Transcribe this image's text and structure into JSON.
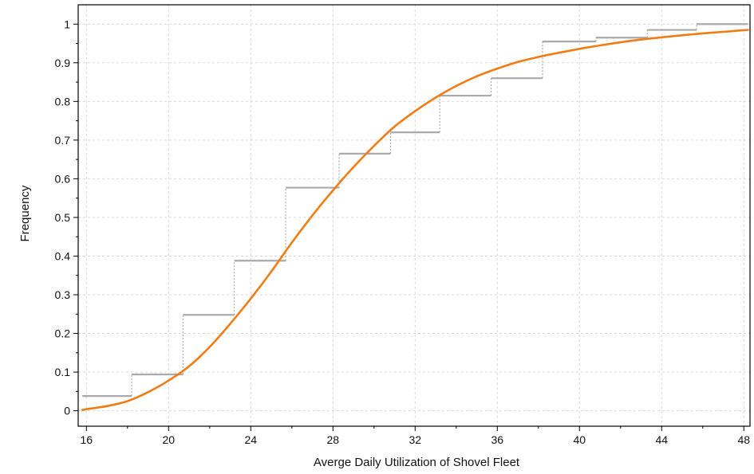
{
  "chart_data": {
    "type": "line",
    "title": "",
    "xlabel": "Averge Daily Utilization of Shovel Fleet",
    "ylabel": "Frequency",
    "xlim": [
      15.6,
      48.3
    ],
    "ylim": [
      -0.04,
      1.05
    ],
    "x_ticks": [
      16,
      20,
      24,
      28,
      32,
      36,
      40,
      44,
      48
    ],
    "y_ticks": [
      0,
      0.1,
      0.2,
      0.3,
      0.4,
      0.5,
      0.6,
      0.7,
      0.8,
      0.9,
      1
    ],
    "grid": true,
    "legend": "none",
    "series": [
      {
        "kind": "empirical-step",
        "color": "#aaaaaa",
        "steps": [
          {
            "x_start": 15.8,
            "x_end": 18.2,
            "y": 0.038
          },
          {
            "x_start": 18.2,
            "x_end": 20.7,
            "y": 0.094
          },
          {
            "x_start": 20.7,
            "x_end": 23.2,
            "y": 0.248
          },
          {
            "x_start": 23.2,
            "x_end": 25.7,
            "y": 0.388
          },
          {
            "x_start": 25.7,
            "x_end": 28.3,
            "y": 0.577
          },
          {
            "x_start": 28.3,
            "x_end": 30.8,
            "y": 0.665
          },
          {
            "x_start": 30.8,
            "x_end": 33.2,
            "y": 0.72
          },
          {
            "x_start": 33.2,
            "x_end": 35.7,
            "y": 0.815
          },
          {
            "x_start": 35.7,
            "x_end": 38.2,
            "y": 0.86
          },
          {
            "x_start": 38.2,
            "x_end": 40.8,
            "y": 0.955
          },
          {
            "x_start": 40.8,
            "x_end": 43.3,
            "y": 0.965
          },
          {
            "x_start": 43.3,
            "x_end": 45.7,
            "y": 0.985
          },
          {
            "x_start": 45.7,
            "x_end": 48.2,
            "y": 1.0
          }
        ]
      },
      {
        "kind": "fitted-cdf",
        "color": "#f07d14",
        "x": [
          15.8,
          16,
          17,
          18,
          19,
          20,
          21,
          22,
          23,
          24,
          25,
          26,
          27,
          28,
          29,
          30,
          31,
          32,
          33,
          34,
          35,
          36,
          37,
          38,
          39,
          40,
          41,
          42,
          43,
          44,
          45,
          46,
          47,
          48.2
        ],
        "y": [
          0.002,
          0.004,
          0.012,
          0.025,
          0.048,
          0.078,
          0.115,
          0.165,
          0.225,
          0.29,
          0.36,
          0.435,
          0.505,
          0.57,
          0.63,
          0.685,
          0.735,
          0.775,
          0.81,
          0.84,
          0.865,
          0.885,
          0.902,
          0.915,
          0.926,
          0.936,
          0.945,
          0.953,
          0.96,
          0.966,
          0.971,
          0.976,
          0.98,
          0.985
        ]
      }
    ]
  }
}
